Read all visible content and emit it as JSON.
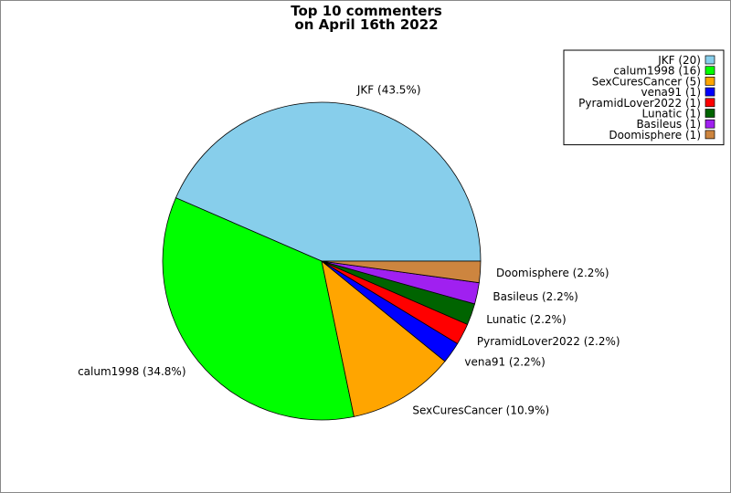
{
  "chart_data": {
    "type": "pie",
    "title_lines": [
      "Top 10 commenters",
      "on April 16th 2022"
    ],
    "slices": [
      {
        "name": "JKF",
        "value": 20,
        "percent_label": "JKF (43.5%)",
        "legend_label": "JKF (20)",
        "color": "#87ceeb"
      },
      {
        "name": "calum1998",
        "value": 16,
        "percent_label": "calum1998 (34.8%)",
        "legend_label": "calum1998 (16)",
        "color": "#00ff00"
      },
      {
        "name": "SexCuresCancer",
        "value": 5,
        "percent_label": "SexCuresCancer (10.9%)",
        "legend_label": "SexCuresCancer (5)",
        "color": "#ffa500"
      },
      {
        "name": "vena91",
        "value": 1,
        "percent_label": "vena91 (2.2%)",
        "legend_label": "vena91 (1)",
        "color": "#0000ff"
      },
      {
        "name": "PyramidLover2022",
        "value": 1,
        "percent_label": "PyramidLover2022 (2.2%)",
        "legend_label": "PyramidLover2022 (1)",
        "color": "#ff0000"
      },
      {
        "name": "Lunatic",
        "value": 1,
        "percent_label": "Lunatic (2.2%)",
        "legend_label": "Lunatic (1)",
        "color": "#006400"
      },
      {
        "name": "Basileus",
        "value": 1,
        "percent_label": "Basileus (2.2%)",
        "legend_label": "Basileus (1)",
        "color": "#a020f0"
      },
      {
        "name": "Doomisphere",
        "value": 1,
        "percent_label": "Doomisphere (2.2%)",
        "legend_label": "Doomisphere (1)",
        "color": "#cd853f"
      }
    ],
    "legend_position": "top-right"
  }
}
